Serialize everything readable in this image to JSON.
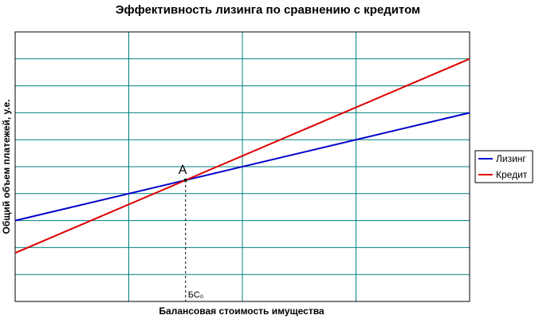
{
  "chart_data": {
    "type": "line",
    "title": "Эффективность лизинга по сравнению с кредитом",
    "xlabel": "Балансовая стоимость имущества",
    "ylabel": "Общий объем платежей, у.е.",
    "xlim": [
      0,
      4
    ],
    "ylim": [
      0,
      10
    ],
    "grid": true,
    "legend_position": "right",
    "series": [
      {
        "name": "Лизинг",
        "color": "#0000cc",
        "x": [
          0,
          4
        ],
        "y": [
          3.0,
          7.0
        ]
      },
      {
        "name": "Кредит",
        "color": "#dd0000",
        "x": [
          0,
          4
        ],
        "y": [
          1.8,
          9.0
        ]
      }
    ],
    "annotations": [
      {
        "label": "А",
        "x": 1.5,
        "y": 4.5
      },
      {
        "label": "БС₀",
        "x": 1.5,
        "y": 0
      }
    ]
  }
}
